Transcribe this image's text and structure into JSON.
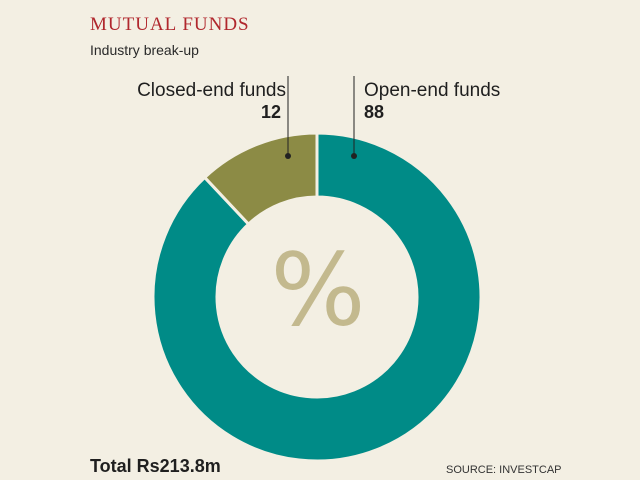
{
  "title": "MUTUAL FUNDS",
  "subtitle": "Industry break-up",
  "center_symbol": "%",
  "total": "Total Rs213.8m",
  "source": "SOURCE: INVESTCAP",
  "colors": {
    "open": "#008b87",
    "closed": "#8c8b45",
    "title": "#b0272d",
    "background": "#f3efe3",
    "symbol": "#c3b98e"
  },
  "chart_data": {
    "type": "pie",
    "subtype": "donut",
    "title": "MUTUAL FUNDS",
    "subtitle": "Industry break-up",
    "slices": [
      {
        "label": "Open-end funds",
        "value": 88,
        "value_label": "88",
        "color": "#008b87"
      },
      {
        "label": "Closed-end funds",
        "value": 12,
        "value_label": "12",
        "color": "#8c8b45"
      }
    ],
    "unit": "%",
    "start": "12 o'clock",
    "direction": "clockwise"
  }
}
